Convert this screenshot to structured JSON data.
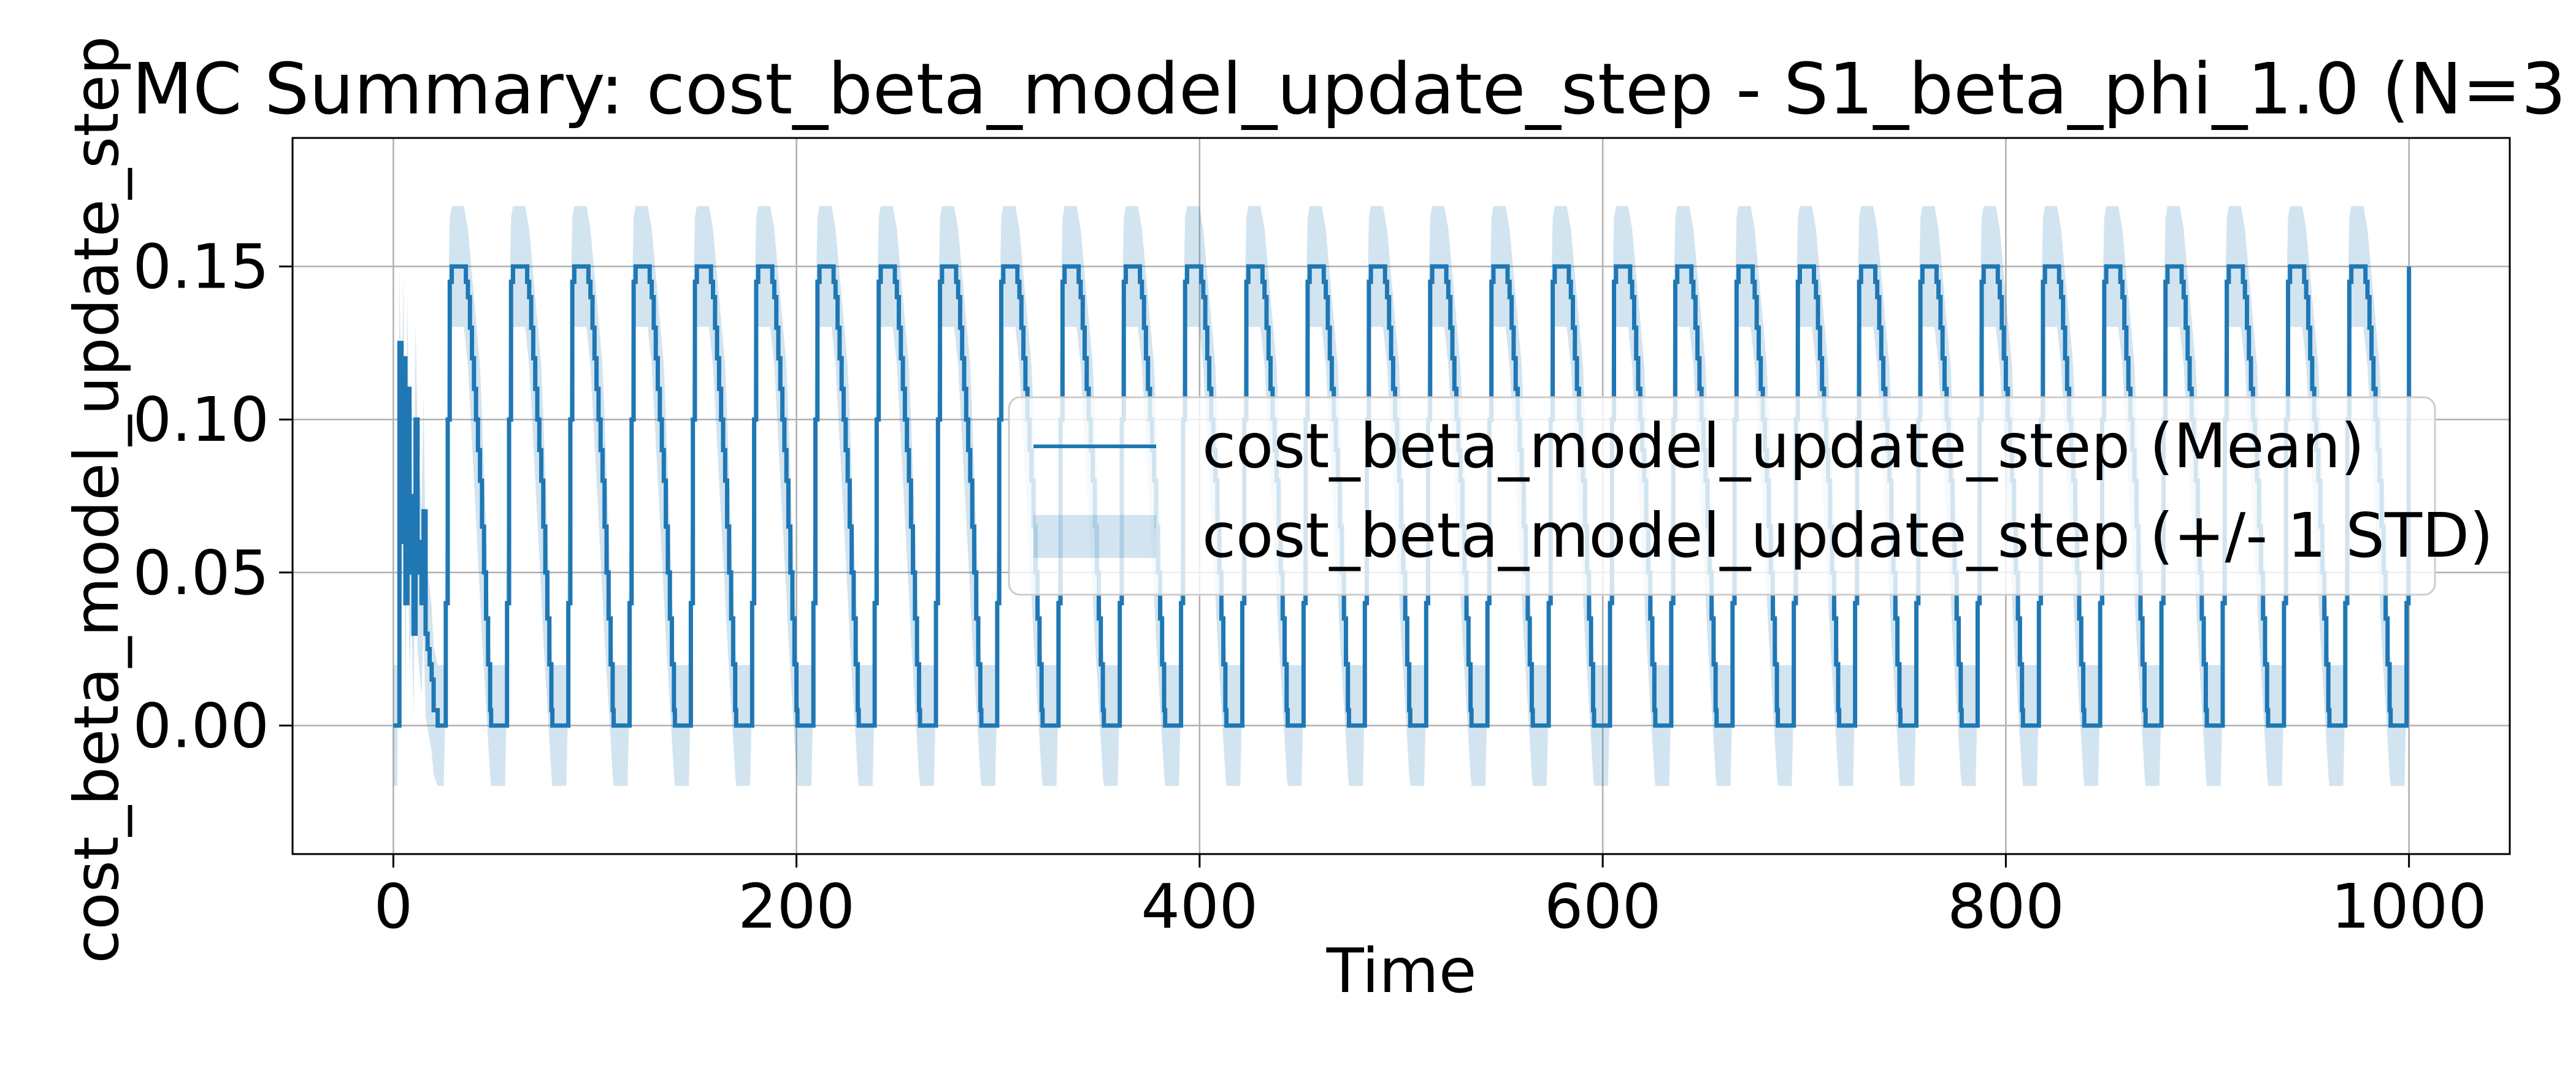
{
  "chart_data": {
    "type": "line",
    "title": "MC Summary: cost_beta_model_update_step - S1_beta_phi_1.0 (N=3",
    "xlabel": "Time",
    "ylabel": "cost_beta_model_update_step",
    "xlim": [
      -50,
      1050
    ],
    "ylim": [
      -0.042,
      0.192
    ],
    "x_ticks": [
      0,
      200,
      400,
      600,
      800,
      1000
    ],
    "x_tick_labels": [
      "0",
      "200",
      "400",
      "600",
      "800",
      "1000"
    ],
    "y_ticks": [
      0.0,
      0.05,
      0.1,
      0.15
    ],
    "y_tick_labels": [
      "0.00",
      "0.05",
      "0.10",
      "0.15"
    ],
    "grid": true,
    "legend_position": "center-right",
    "series": [
      {
        "name": "cost_beta_model_update_step (Mean)",
        "kind": "line",
        "color": "#1f77b4",
        "pattern": {
          "start": 0,
          "end": 1000,
          "period": 30.4,
          "first_cycle_start": 25,
          "rise_duration": 4,
          "plateau_value": 0.15,
          "plateau_duration": 6,
          "decay_duration": 13,
          "trough_value": 0.0,
          "decay_shape": [
            0.15,
            0.145,
            0.14,
            0.13,
            0.12,
            0.11,
            0.1,
            0.09,
            0.08,
            0.065,
            0.05,
            0.035,
            0.02,
            0.005
          ],
          "initial_segment": {
            "x": [
              0,
              2,
              3,
              4,
              5,
              6,
              7,
              8,
              9,
              10,
              11,
              12,
              13,
              14,
              15,
              16,
              17,
              18,
              19,
              20,
              22,
              25
            ],
            "y": [
              0.0,
              0.0,
              0.125,
              0.06,
              0.12,
              0.04,
              0.11,
              0.05,
              0.075,
              0.03,
              0.1,
              0.06,
              0.05,
              0.04,
              0.07,
              0.03,
              0.025,
              0.02,
              0.015,
              0.005,
              0.0,
              0.0
            ]
          }
        }
      },
      {
        "name": "cost_beta_model_update_step (+/- 1 STD)",
        "kind": "band",
        "color": "#1f77b4",
        "opacity": 0.2,
        "std_peak": 0.035,
        "lower_min": -0.03,
        "upper_max": 0.18
      }
    ]
  }
}
